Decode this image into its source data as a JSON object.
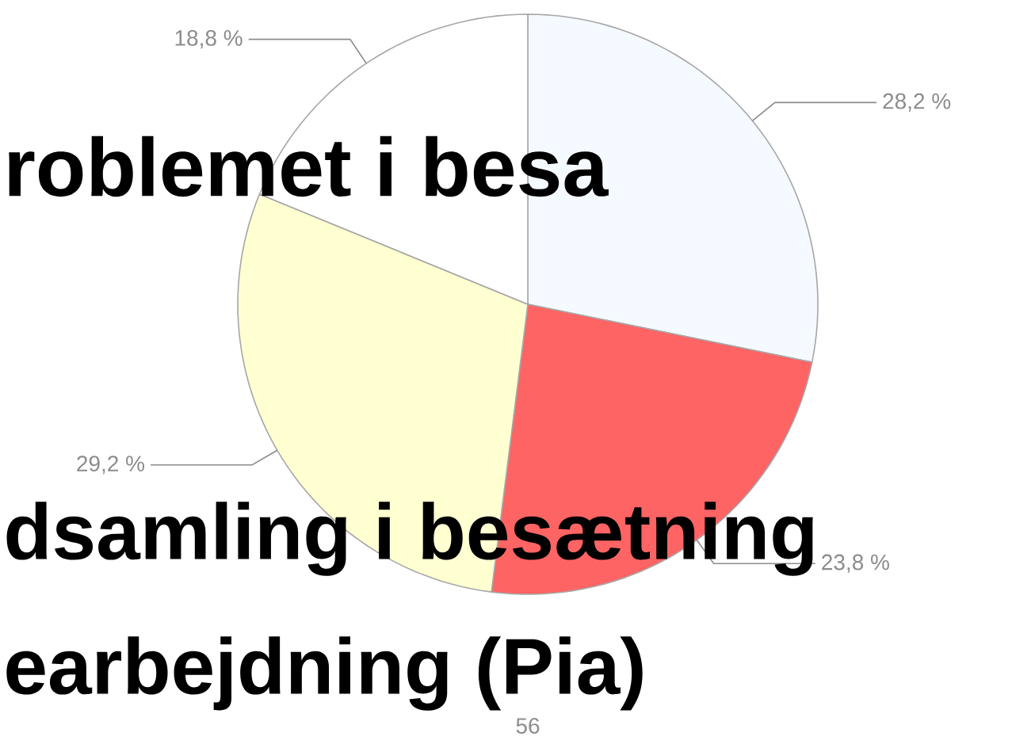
{
  "chart_data": {
    "type": "pie",
    "categories": [
      null,
      null,
      null,
      null
    ],
    "values": [
      28.2,
      23.8,
      29.2,
      18.8
    ],
    "colors": [
      "#f4faff",
      "#ff6464",
      "#ffffd2",
      "#ffffff"
    ],
    "value_labels": [
      "28,2 %",
      "23,8 %",
      "29,2 %",
      "18,8 %"
    ],
    "annotations": [
      "roblemet i besa",
      "dsamling i besætning",
      "earbejdning (Pia)",
      "56"
    ]
  }
}
